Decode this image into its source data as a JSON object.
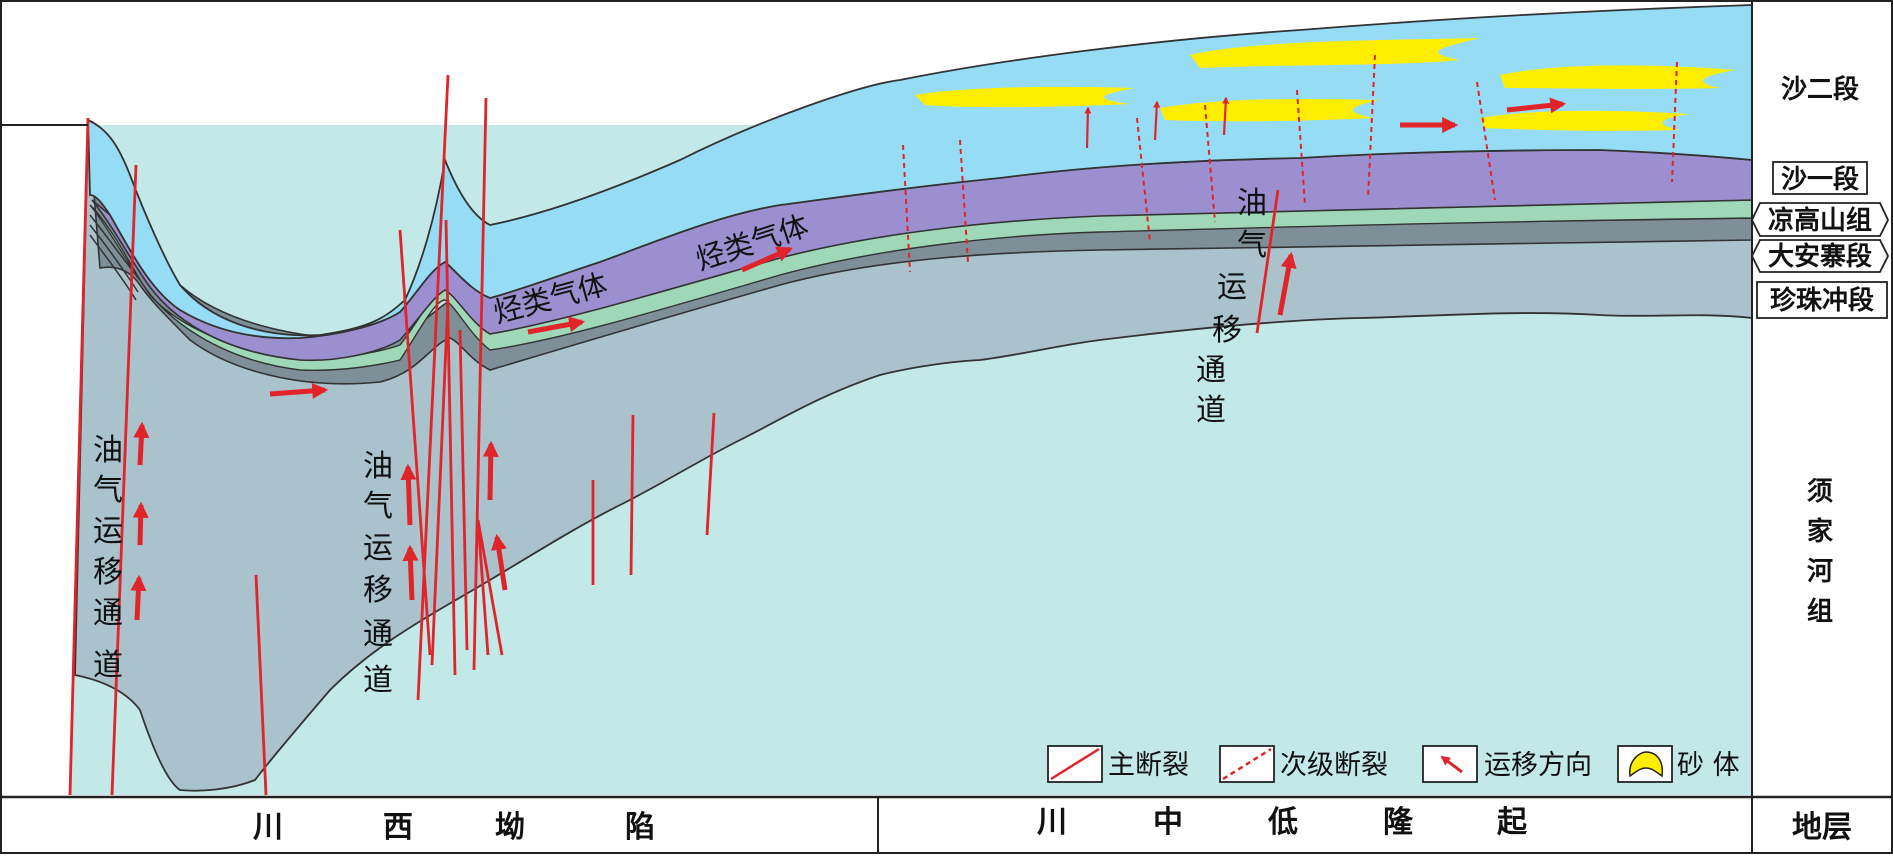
{
  "strata": {
    "sha2": "沙二段",
    "sha1": "沙一段",
    "lianggaoshan": "凉高山组",
    "daanzhai": "大安寨段",
    "zhenzhuchong": "珍珠冲段",
    "xujiahe": [
      "须",
      "家",
      "河",
      "组"
    ]
  },
  "footer": {
    "region_west": [
      "川",
      "西",
      "坳",
      "陷"
    ],
    "region_central": [
      "川",
      "中",
      "低",
      "隆",
      "起"
    ],
    "strata_header": "地层"
  },
  "annotations": {
    "channel_1": [
      "油",
      "气",
      "运",
      "移",
      "通",
      "道"
    ],
    "channel_2": [
      "油",
      "气",
      "运",
      "移",
      "通",
      "道"
    ],
    "channel_3": [
      "油",
      "气",
      "运",
      "移",
      "通",
      "道"
    ],
    "gas_1": "烃类气体",
    "gas_2": "烃类气体"
  },
  "legend": {
    "main_fault": "主断裂",
    "secondary_fault": "次级断裂",
    "migration_direction": "运移方向",
    "sand_body": "砂 体"
  },
  "colors": {
    "sha2": "#96dcf5",
    "sha1": "#9b8fd0",
    "lianggaoshan": "#9ed8b8",
    "daanzhai": "#7f8f98",
    "zhenzhuchong": "#a9c2cc",
    "xujiahe": "#c2e9e8",
    "fault": "#e0242a",
    "sand": "#ffee00"
  }
}
